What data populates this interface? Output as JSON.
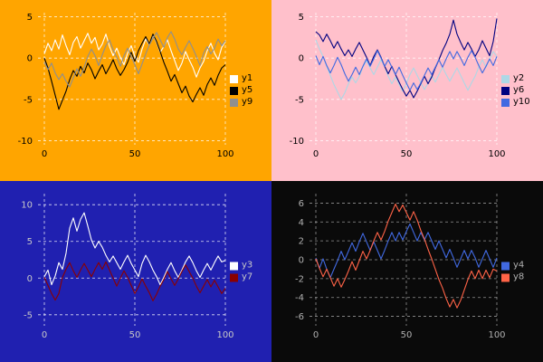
{
  "chart_data": [
    {
      "id": "top-left",
      "type": "line",
      "background": "#FFA500",
      "tick_color": "#000000",
      "grid_color": "#FFFFFF",
      "legend_text_color": "#000000",
      "x_range": [
        0,
        100
      ],
      "xlim": [
        -3.5,
        101.5
      ],
      "ylim": [
        -10.5,
        5.5
      ],
      "xticks": [
        0,
        50,
        100
      ],
      "yticks": [
        5,
        0,
        -5,
        -10
      ],
      "legend_position": "right",
      "grid": true,
      "series": [
        {
          "name": "y1",
          "color": "#FFFFFF",
          "values": [
            0.5,
            1.8,
            0.9,
            2.2,
            1.1,
            2.8,
            1.5,
            0.4,
            1.9,
            2.6,
            1.2,
            2.1,
            3.0,
            1.8,
            2.5,
            1.0,
            1.7,
            2.9,
            1.4,
            0.3,
            1.2,
            0.1,
            -0.8,
            0.6,
            1.5,
            0.2,
            -0.5,
            1.1,
            2.3,
            1.6,
            2.8,
            1.9,
            0.7,
            1.4,
            2.2,
            0.9,
            -0.3,
            -1.5,
            -0.6,
            0.8,
            -0.2,
            -1.1,
            -2.3,
            -1.2,
            -0.4,
            0.9,
            1.8,
            0.6,
            -0.2,
            1.3,
            2.0
          ]
        },
        {
          "name": "y5",
          "color": "#000000",
          "values": [
            0.0,
            -1.2,
            -2.8,
            -4.5,
            -6.2,
            -5.1,
            -4.0,
            -2.6,
            -1.5,
            -2.2,
            -1.0,
            -1.8,
            -0.6,
            -1.4,
            -2.5,
            -1.6,
            -0.8,
            -1.9,
            -1.1,
            -0.2,
            -1.3,
            -2.1,
            -1.4,
            -0.5,
            0.7,
            -0.4,
            0.9,
            1.8,
            2.6,
            1.7,
            2.9,
            2.0,
            0.8,
            -0.5,
            -1.6,
            -2.8,
            -2.0,
            -3.1,
            -4.2,
            -3.4,
            -4.6,
            -5.3,
            -4.4,
            -3.6,
            -4.5,
            -3.2,
            -2.4,
            -3.3,
            -2.1,
            -1.2,
            -0.8
          ]
        },
        {
          "name": "y9",
          "color": "#8F8F8F",
          "values": [
            -0.5,
            -1.4,
            -0.6,
            -1.8,
            -2.6,
            -1.9,
            -2.8,
            -3.5,
            -2.4,
            -1.3,
            -2.2,
            -1.1,
            0.2,
            1.1,
            0.3,
            -0.9,
            0.4,
            1.5,
            2.2,
            1.0,
            0.1,
            -1.0,
            0.3,
            1.2,
            0.2,
            -0.8,
            -1.9,
            -0.7,
            0.5,
            1.6,
            2.4,
            3.1,
            2.2,
            1.3,
            2.5,
            3.2,
            2.3,
            1.1,
            0.4,
            1.3,
            2.1,
            1.2,
            0.2,
            -0.9,
            0.6,
            1.4,
            0.5,
            1.2,
            2.3,
            1.5,
            2.1
          ]
        }
      ]
    },
    {
      "id": "top-right",
      "type": "line",
      "background": "#FFC0CB",
      "tick_color": "#000000",
      "grid_color": "#FFFFFF",
      "legend_text_color": "#000000",
      "x_range": [
        0,
        100
      ],
      "xlim": [
        -3.5,
        101.5
      ],
      "ylim": [
        -10.5,
        5.5
      ],
      "xticks": [
        0,
        50,
        100
      ],
      "yticks": [
        5,
        0,
        -5,
        -10
      ],
      "legend_position": "right",
      "grid": true,
      "series": [
        {
          "name": "y2",
          "color": "#ADD8E6",
          "values": [
            2.2,
            1.1,
            0.2,
            -1.0,
            -2.1,
            -3.2,
            -4.1,
            -5.0,
            -4.2,
            -3.1,
            -2.3,
            -3.0,
            -2.2,
            -1.1,
            -0.3,
            -1.2,
            -2.0,
            -1.1,
            -0.2,
            -1.0,
            -2.2,
            -3.1,
            -2.3,
            -3.2,
            -4.0,
            -3.1,
            -2.0,
            -1.2,
            -2.1,
            -3.0,
            -3.8,
            -3.0,
            -2.1,
            -2.9,
            -2.0,
            -1.1,
            -2.0,
            -2.8,
            -2.0,
            -1.2,
            -2.1,
            -3.0,
            -3.9,
            -3.0,
            -2.2,
            -1.1,
            -0.2,
            -1.1,
            -0.1,
            0.8,
            0.2
          ]
        },
        {
          "name": "y6",
          "color": "#000080",
          "values": [
            3.2,
            2.8,
            2.0,
            2.9,
            2.1,
            1.2,
            2.0,
            1.1,
            0.3,
            1.0,
            0.2,
            1.1,
            1.9,
            1.0,
            0.1,
            -0.9,
            0.2,
            1.0,
            0.1,
            -1.0,
            -1.9,
            -1.0,
            -2.0,
            -2.9,
            -3.8,
            -4.6,
            -3.9,
            -4.8,
            -4.0,
            -3.1,
            -2.2,
            -3.1,
            -2.3,
            -1.2,
            -0.2,
            0.9,
            1.8,
            2.9,
            4.6,
            2.9,
            1.9,
            1.0,
            1.9,
            1.1,
            0.2,
            1.0,
            2.1,
            1.2,
            0.3,
            2.0,
            4.8
          ]
        },
        {
          "name": "y10",
          "color": "#4169E1",
          "values": [
            0.3,
            -0.8,
            0.2,
            -0.9,
            -1.8,
            -0.9,
            0.1,
            -0.8,
            -1.9,
            -2.8,
            -2.0,
            -1.1,
            -2.0,
            -1.0,
            -0.1,
            -1.0,
            -0.1,
            0.9,
            0.0,
            -1.0,
            -0.2,
            -1.1,
            -2.0,
            -1.1,
            -2.1,
            -3.0,
            -3.9,
            -3.0,
            -3.8,
            -3.0,
            -2.1,
            -1.2,
            -2.0,
            -1.1,
            -0.2,
            -1.1,
            -0.1,
            0.8,
            -0.1,
            0.8,
            0.0,
            -0.9,
            0.1,
            0.9,
            0.1,
            -0.9,
            -1.8,
            -1.0,
            -0.1,
            -0.9,
            0.2
          ]
        }
      ]
    },
    {
      "id": "bottom-left",
      "type": "line",
      "background": "#2020B0",
      "tick_color": "#C8C8C8",
      "grid_color": "#FFFFFF",
      "legend_text_color": "#C8C8C8",
      "x_range": [
        0,
        100
      ],
      "xlim": [
        -3.5,
        101.5
      ],
      "ylim": [
        -6.5,
        11.5
      ],
      "xticks": [
        0,
        50,
        100
      ],
      "yticks": [
        10,
        5,
        0,
        -5
      ],
      "legend_position": "right",
      "grid": true,
      "series": [
        {
          "name": "y3",
          "color": "#FFFFFF",
          "values": [
            0.2,
            1.1,
            -0.9,
            0.3,
            2.1,
            1.2,
            3.4,
            6.8,
            8.2,
            6.4,
            8.0,
            8.9,
            7.1,
            5.2,
            4.1,
            5.0,
            4.2,
            3.1,
            2.2,
            3.0,
            2.1,
            1.2,
            2.2,
            3.1,
            2.0,
            1.1,
            0.2,
            2.0,
            3.1,
            2.2,
            1.1,
            0.2,
            -0.9,
            0.1,
            1.2,
            2.1,
            1.0,
            0.1,
            1.1,
            2.2,
            3.0,
            2.1,
            1.0,
            0.1,
            1.1,
            2.0,
            1.1,
            2.1,
            3.0,
            2.2,
            2.4
          ]
        },
        {
          "name": "y7",
          "color": "#8B0000",
          "values": [
            0.1,
            -1.0,
            -2.1,
            -3.0,
            -2.1,
            0.1,
            1.2,
            2.1,
            1.0,
            0.1,
            1.1,
            2.0,
            1.1,
            0.2,
            1.2,
            2.1,
            1.2,
            2.2,
            1.1,
            0.0,
            -1.1,
            0.0,
            1.0,
            0.1,
            -1.0,
            -2.1,
            -1.2,
            -0.1,
            -1.1,
            -2.0,
            -3.1,
            -2.2,
            -1.1,
            -0.2,
            0.9,
            -0.1,
            -1.0,
            -0.1,
            0.9,
            1.8,
            0.9,
            0.0,
            -1.1,
            -2.0,
            -1.1,
            -0.2,
            -1.2,
            -0.3,
            -1.2,
            -2.1,
            -1.4
          ]
        }
      ]
    },
    {
      "id": "bottom-right",
      "type": "line",
      "background": "#0A0A0A",
      "tick_color": "#B0B0B0",
      "grid_color": "#AAAAAA",
      "legend_text_color": "#B0B0B0",
      "x_range": [
        0,
        100
      ],
      "xlim": [
        -3.5,
        101.5
      ],
      "ylim": [
        -7,
        7
      ],
      "xticks": [
        0,
        50,
        100
      ],
      "yticks": [
        6,
        4,
        2,
        0,
        -2,
        -4,
        -6
      ],
      "legend_position": "right",
      "grid": true,
      "series": [
        {
          "name": "y4",
          "color": "#4169E1",
          "values": [
            0.2,
            -0.9,
            0.1,
            -1.0,
            -1.9,
            -1.0,
            -0.1,
            0.9,
            0.0,
            0.9,
            1.8,
            0.9,
            1.9,
            2.8,
            1.9,
            1.0,
            1.9,
            1.0,
            0.1,
            1.0,
            2.0,
            2.9,
            2.0,
            2.9,
            2.1,
            3.0,
            3.8,
            2.9,
            2.0,
            2.9,
            2.1,
            2.9,
            2.0,
            1.1,
            2.0,
            1.1,
            0.2,
            1.1,
            0.2,
            -0.8,
            0.1,
            1.0,
            0.1,
            1.0,
            0.2,
            -0.8,
            0.1,
            1.0,
            0.1,
            -0.8,
            0.2
          ]
        },
        {
          "name": "y8",
          "color": "#FF6347",
          "values": [
            0.1,
            -0.9,
            -1.8,
            -1.0,
            -1.9,
            -2.8,
            -2.0,
            -2.9,
            -2.1,
            -1.2,
            -0.2,
            -1.1,
            -0.1,
            0.9,
            0.1,
            1.0,
            2.0,
            2.9,
            2.1,
            3.0,
            4.1,
            5.0,
            5.9,
            5.1,
            5.8,
            5.0,
            4.2,
            5.1,
            4.2,
            3.1,
            2.2,
            1.1,
            0.1,
            -1.0,
            -2.1,
            -3.0,
            -4.1,
            -5.0,
            -4.2,
            -5.1,
            -4.3,
            -3.2,
            -2.1,
            -1.2,
            -2.0,
            -1.1,
            -2.0,
            -1.1,
            -1.9,
            -1.0,
            -1.2
          ]
        }
      ]
    }
  ]
}
